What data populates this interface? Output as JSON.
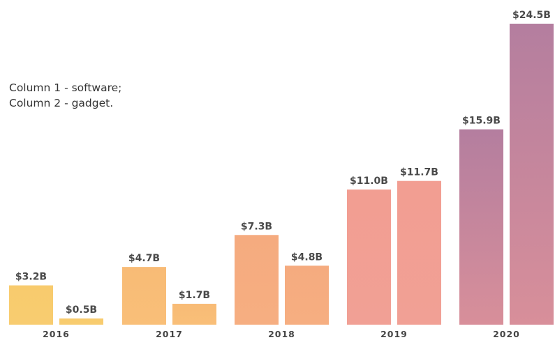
{
  "chart_data": {
    "type": "bar",
    "categories": [
      "2016",
      "2017",
      "2018",
      "2019",
      "2020"
    ],
    "series": [
      {
        "values": [
          3.2,
          4.7,
          7.3,
          11.0,
          15.9
        ]
      },
      {
        "values": [
          0.5,
          1.7,
          4.8,
          11.7,
          24.5
        ]
      }
    ],
    "value_labels": [
      [
        "$3.2B",
        "$4.7B",
        "$7.3B",
        "$11.0B",
        "$15.9B"
      ],
      [
        "$0.5B",
        "$1.7B",
        "$4.8B",
        "$11.7B",
        "$24.5B"
      ]
    ],
    "bar_colors": [
      "#f8cc70",
      "#f9bf78",
      "#f6ae81",
      "#f1a095",
      "#d88f9a"
    ],
    "bar_colors_top": [
      "#f8cb6d",
      "#f8bb76",
      "#f5ab7f",
      "#f29e92",
      "#b47e9f"
    ],
    "annotation": [
      "Column 1 - software;",
      "Column 2 - gadget."
    ],
    "ylim": [
      0,
      24.5
    ],
    "grid": false,
    "legend": "none",
    "xlabel": "",
    "ylabel": ""
  }
}
